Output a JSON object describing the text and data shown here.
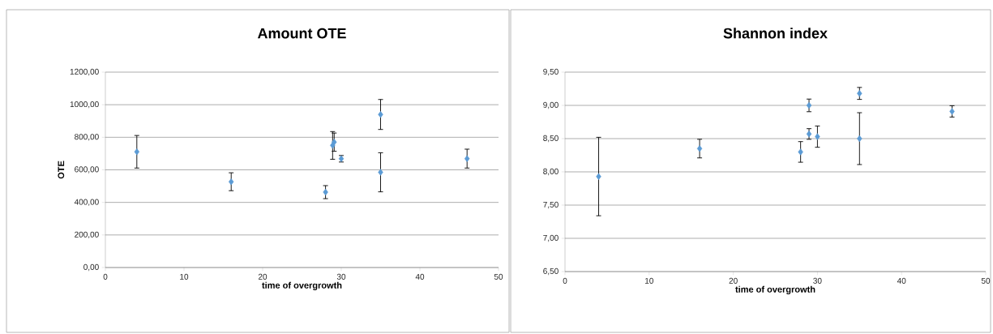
{
  "chart_data": [
    {
      "type": "scatter",
      "title": "Amount OTE",
      "xlabel": "time of overgrowth",
      "ylabel": "OTE",
      "color": "#5b9bd5",
      "marker": "diamond",
      "grid": "y",
      "x": [
        4,
        16,
        28,
        28.9,
        29.1,
        30,
        35,
        35,
        46
      ],
      "values": [
        711,
        527,
        463,
        750,
        770,
        668,
        940,
        585,
        669
      ],
      "errors": [
        100,
        55,
        40,
        85,
        56,
        20,
        92,
        120,
        58
      ],
      "xlim": [
        0,
        50
      ],
      "xticks": [
        0,
        10,
        20,
        30,
        40,
        50
      ],
      "ylim": [
        0,
        1200
      ],
      "yticks": [
        {
          "value": 0,
          "label": "0,00"
        },
        {
          "value": 200,
          "label": "200,00"
        },
        {
          "value": 400,
          "label": "400,00"
        },
        {
          "value": 600,
          "label": "600,00"
        },
        {
          "value": 800,
          "label": "800,00"
        },
        {
          "value": 1000,
          "label": "1000,00"
        },
        {
          "value": 1200,
          "label": "1200,00"
        }
      ]
    },
    {
      "type": "scatter",
      "title": "Shannon index",
      "xlabel": "time of overgrowth",
      "color": "#5b9bd5",
      "marker": "diamond",
      "grid": "y",
      "x": [
        4,
        16,
        28,
        29,
        29,
        30,
        35,
        35,
        46
      ],
      "values": [
        7.93,
        8.35,
        8.3,
        9.0,
        8.57,
        8.53,
        9.18,
        8.5,
        8.91
      ],
      "errors": [
        0.59,
        0.14,
        0.155,
        0.095,
        0.08,
        0.16,
        0.09,
        0.39,
        0.085
      ],
      "xlim": [
        0,
        50
      ],
      "xticks": [
        0,
        10,
        20,
        30,
        40,
        50
      ],
      "ylim": [
        6.5,
        9.5
      ],
      "yticks": [
        {
          "value": 6.5,
          "label": "6,50"
        },
        {
          "value": 7.0,
          "label": "7,00"
        },
        {
          "value": 7.5,
          "label": "7,50"
        },
        {
          "value": 8.0,
          "label": "8,00"
        },
        {
          "value": 8.5,
          "label": "8,50"
        },
        {
          "value": 9.0,
          "label": "9,00"
        },
        {
          "value": 9.5,
          "label": "9,50"
        }
      ]
    }
  ]
}
